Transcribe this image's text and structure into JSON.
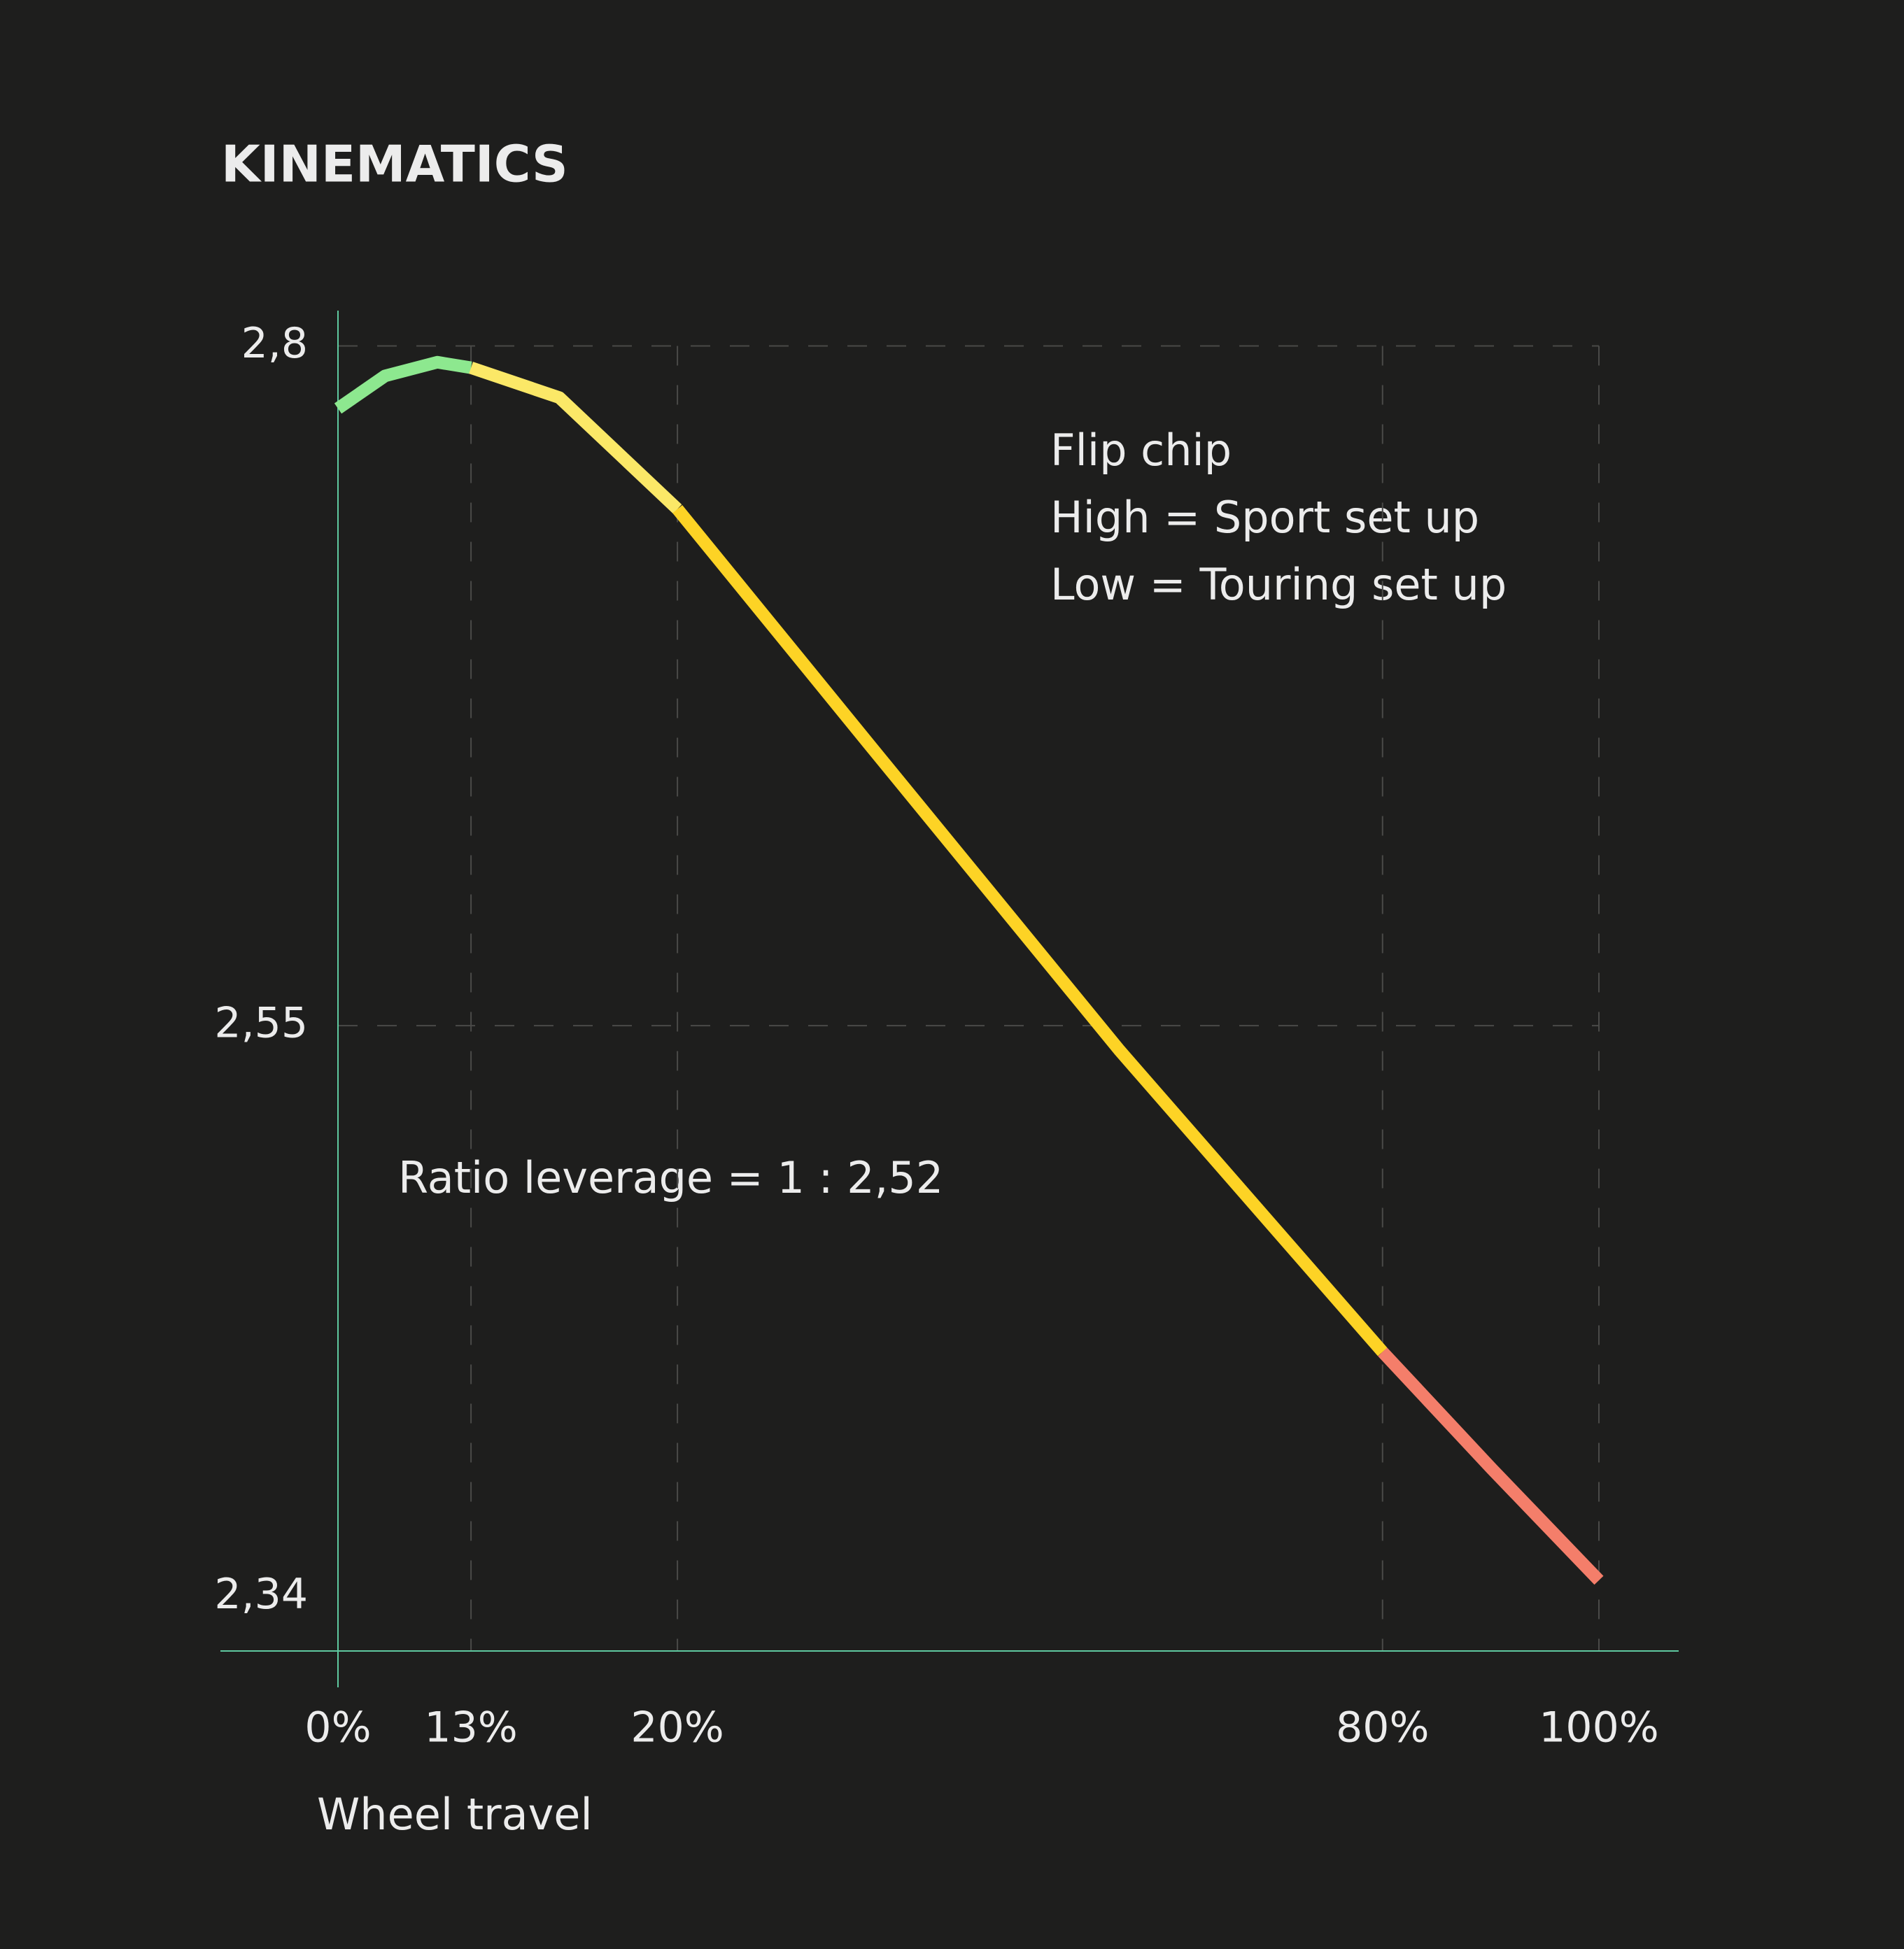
{
  "chart_data": {
    "type": "line",
    "title": "KINEMATICS",
    "x_label": "Wheel travel",
    "annotations": [
      "Flip chip",
      "High = Sport set up",
      "Low = Touring set up",
      "Ratio leverage = 1 : 2,52"
    ],
    "series": [
      {
        "color": "#8de88f",
        "x": [
          0,
          4.6,
          9.7,
          13
        ],
        "values": [
          2.777,
          2.789,
          2.794,
          2.792
        ]
      },
      {
        "color": "#fbe867",
        "x": [
          13,
          16,
          20
        ],
        "values": [
          2.792,
          2.781,
          2.74
        ]
      },
      {
        "color": "#fdd325",
        "x": [
          20,
          36.4,
          57.6,
          80
        ],
        "values": [
          2.74,
          2.653,
          2.541,
          2.43
        ]
      },
      {
        "color": "#f47e6a",
        "x": [
          80,
          90.1,
          100
        ],
        "values": [
          2.43,
          2.387,
          2.346
        ]
      }
    ],
    "xlim": [
      0,
      100
    ],
    "xticks": [
      {
        "value": 0,
        "label": "0%"
      },
      {
        "value": 13,
        "label": "13%"
      },
      {
        "value": 20,
        "label": "20%"
      },
      {
        "value": 80,
        "label": "80%"
      },
      {
        "value": 100,
        "label": "100%"
      }
    ],
    "ylim": [
      2.32,
      2.813
    ],
    "yticks": [
      {
        "value": 2.8,
        "label": "2,8"
      },
      {
        "value": 2.55,
        "label": "2,55"
      },
      {
        "value": 2.34,
        "label": "2,34"
      }
    ],
    "grid": true,
    "axis_color": "#5fc9a0"
  }
}
